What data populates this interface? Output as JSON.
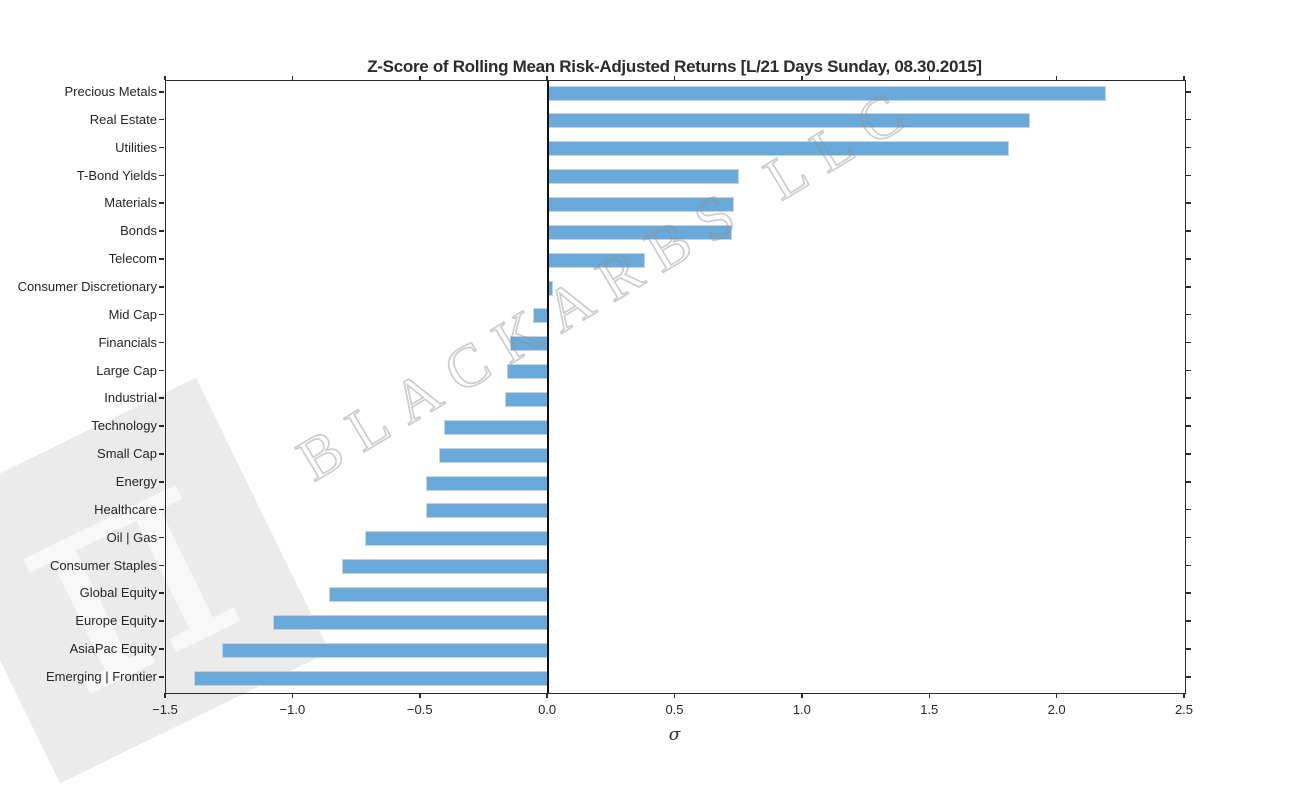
{
  "title": "Z-Score of Rolling Mean Risk-Adjusted Returns [L/21 Days Sunday, 08.30.2015]",
  "watermark": {
    "text": "BLACKARBS LLC",
    "logo_char": "π"
  },
  "chart_data": {
    "type": "bar",
    "orientation": "horizontal",
    "title": "Z-Score of Rolling Mean Risk-Adjusted Returns [L/21 Days Sunday, 08.30.2015]",
    "xlabel": "σ",
    "ylabel": "",
    "xlim": [
      -1.5,
      2.5
    ],
    "xticks": [
      -1.5,
      -1.0,
      -0.5,
      0.0,
      0.5,
      1.0,
      1.5,
      2.0,
      2.5
    ],
    "xtick_labels": [
      "−1.5",
      "−1.0",
      "−0.5",
      "0.0",
      "0.5",
      "1.0",
      "1.5",
      "2.0",
      "2.5"
    ],
    "grid": false,
    "legend": "none",
    "bar_color": "#69aadb",
    "zero_line_color": "#111111",
    "categories": [
      "Precious Metals",
      "Real Estate",
      "Utilities",
      "T-Bond Yields",
      "Materials",
      "Bonds",
      "Telecom",
      "Consumer Discretionary",
      "Mid Cap",
      "Financials",
      "Large Cap",
      "Industrial",
      "Technology",
      "Small Cap",
      "Energy",
      "Healthcare",
      "Oil | Gas",
      "Consumer Staples",
      "Global Equity",
      "Europe Equity",
      "AsiaPac Equity",
      "Emerging | Frontier"
    ],
    "values": [
      2.19,
      1.89,
      1.81,
      0.75,
      0.73,
      0.72,
      0.38,
      0.02,
      -0.06,
      -0.15,
      -0.16,
      -0.17,
      -0.41,
      -0.43,
      -0.48,
      -0.48,
      -0.72,
      -0.81,
      -0.86,
      -1.08,
      -1.28,
      -1.39
    ]
  }
}
